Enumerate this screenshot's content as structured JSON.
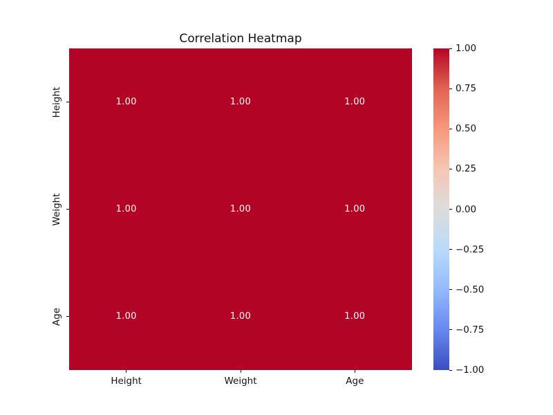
{
  "figure": {
    "background": "#ffffff"
  },
  "chart_data": {
    "type": "heatmap",
    "title": "Correlation Heatmap",
    "x_categories": [
      "Height",
      "Weight",
      "Age"
    ],
    "y_categories": [
      "Height",
      "Weight",
      "Age"
    ],
    "values": [
      [
        1.0,
        1.0,
        1.0
      ],
      [
        1.0,
        1.0,
        1.0
      ],
      [
        1.0,
        1.0,
        1.0
      ]
    ],
    "annotations": [
      [
        "1.00",
        "1.00",
        "1.00"
      ],
      [
        "1.00",
        "1.00",
        "1.00"
      ],
      [
        "1.00",
        "1.00",
        "1.00"
      ]
    ],
    "annotation_color": "#ffffff",
    "cell_color": "#b40426",
    "colormap": "coolwarm",
    "vmin": -1.0,
    "vmax": 1.0,
    "grid": false,
    "legend": false,
    "colorbar": {
      "tick_labels": [
        "1.00",
        "0.75",
        "0.50",
        "0.25",
        "0.00",
        "−0.25",
        "−0.50",
        "−0.75",
        "−1.00"
      ],
      "gradient_stops": [
        {
          "pos": 0,
          "color": "#b40426"
        },
        {
          "pos": 12.5,
          "color": "#e26352"
        },
        {
          "pos": 25,
          "color": "#f6987b"
        },
        {
          "pos": 37.5,
          "color": "#f5c6b4"
        },
        {
          "pos": 50,
          "color": "#dddcdc"
        },
        {
          "pos": 62.5,
          "color": "#badafa"
        },
        {
          "pos": 75,
          "color": "#93baff"
        },
        {
          "pos": 87.5,
          "color": "#6788ee"
        },
        {
          "pos": 100,
          "color": "#3b4cc0"
        }
      ]
    }
  }
}
